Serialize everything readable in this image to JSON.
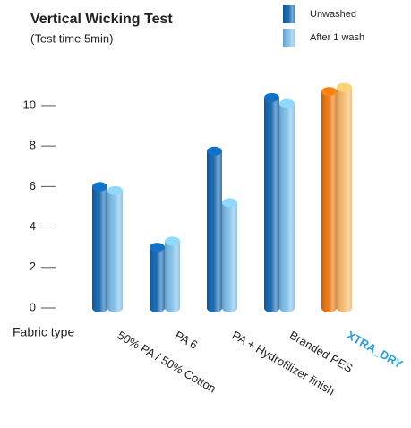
{
  "chart_data": {
    "type": "bar",
    "title": "Vertical Wicking Test",
    "subtitle": "(Test time 5min)",
    "x_label": "Fabric type",
    "categories": [
      "50% PA / 50% Cotton",
      "PA 6",
      "PA + Hydrofilizer finish",
      "Branded PES",
      "XTRA_DRY"
    ],
    "series": [
      {
        "name": "Unwashed",
        "color": "#0f63ad",
        "values": [
          6.0,
          3.0,
          7.75,
          10.4,
          10.7
        ]
      },
      {
        "name": "After 1 wash",
        "color": "#7cbde9",
        "values": [
          5.8,
          3.3,
          5.2,
          10.1,
          10.9
        ]
      }
    ],
    "highlight_index": 4,
    "highlight_colors": [
      "#e8720c",
      "#f8b766"
    ],
    "highlight_label_color": "#2a9fd6",
    "ylim": [
      0,
      11.5
    ],
    "yticks": [
      0,
      2,
      4,
      6,
      8,
      10
    ],
    "grid": false
  }
}
